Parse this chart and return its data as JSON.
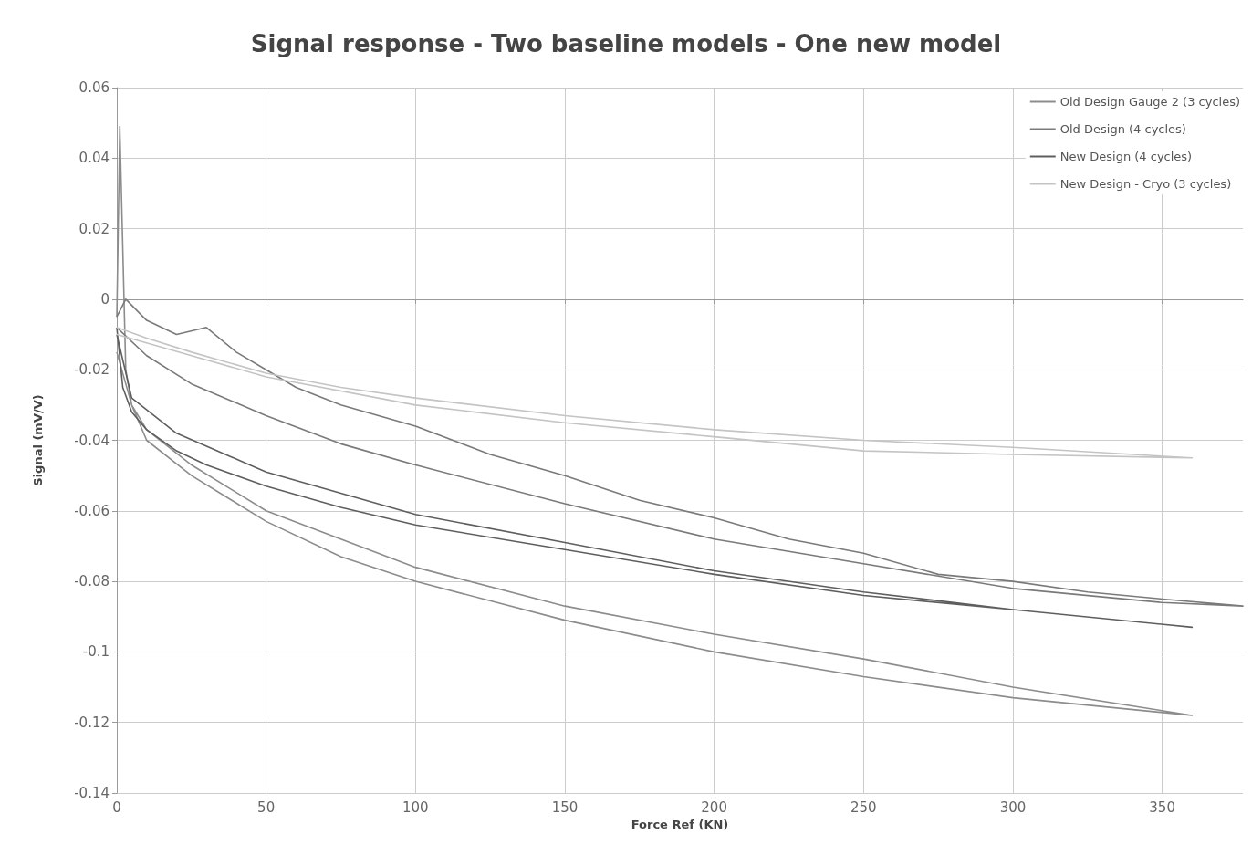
{
  "chart_data": {
    "type": "line",
    "title": "Signal response - Two baseline models - One new model",
    "xlabel": "Force Ref (KN)",
    "ylabel": "Signal (mV/V)",
    "xlim": [
      0,
      377
    ],
    "xticks": [
      0,
      50,
      100,
      150,
      200,
      250,
      300,
      350
    ],
    "ylim": [
      -0.14,
      0.06
    ],
    "yticks": [
      -0.14,
      -0.12,
      -0.1,
      -0.08,
      -0.06,
      -0.04,
      -0.02,
      0,
      0.02,
      0.04,
      0.06
    ],
    "grid": true,
    "legend": "top right",
    "marker": "none",
    "line_style": "solid",
    "series": [
      {
        "name": "Old Design Gauge 2 (3 cycles)",
        "color": "#8c8c8c",
        "x": [
          0,
          1,
          3,
          5,
          10,
          25,
          50,
          75,
          100,
          150,
          200,
          250,
          300,
          360,
          300,
          250,
          200,
          150,
          100,
          50,
          25,
          10,
          5,
          0
        ],
        "values": [
          -0.005,
          0.049,
          -0.02,
          -0.03,
          -0.04,
          -0.05,
          -0.063,
          -0.073,
          -0.08,
          -0.091,
          -0.1,
          -0.107,
          -0.113,
          -0.118,
          -0.11,
          -0.102,
          -0.095,
          -0.087,
          -0.076,
          -0.06,
          -0.047,
          -0.037,
          -0.03,
          -0.015
        ]
      },
      {
        "name": "Old Design (4 cycles)",
        "color": "#7a7a7a",
        "x": [
          0,
          3,
          10,
          20,
          30,
          40,
          50,
          60,
          75,
          100,
          125,
          150,
          175,
          200,
          225,
          250,
          275,
          300,
          325,
          350,
          377,
          350,
          300,
          250,
          200,
          150,
          100,
          75,
          50,
          25,
          10,
          0
        ],
        "values": [
          -0.005,
          0,
          -0.006,
          -0.01,
          -0.008,
          -0.015,
          -0.02,
          -0.025,
          -0.03,
          -0.036,
          -0.044,
          -0.05,
          -0.057,
          -0.062,
          -0.068,
          -0.072,
          -0.078,
          -0.08,
          -0.083,
          -0.085,
          -0.087,
          -0.086,
          -0.082,
          -0.075,
          -0.068,
          -0.058,
          -0.047,
          -0.041,
          -0.033,
          -0.024,
          -0.016,
          -0.008
        ]
      },
      {
        "name": "New Design (4 cycles)",
        "color": "#5e5e5e",
        "x": [
          0,
          2,
          5,
          10,
          20,
          30,
          50,
          75,
          100,
          150,
          200,
          250,
          300,
          360,
          300,
          250,
          200,
          150,
          100,
          50,
          20,
          5,
          0
        ],
        "values": [
          -0.008,
          -0.025,
          -0.032,
          -0.037,
          -0.043,
          -0.047,
          -0.053,
          -0.059,
          -0.064,
          -0.071,
          -0.078,
          -0.084,
          -0.088,
          -0.093,
          -0.088,
          -0.083,
          -0.077,
          -0.069,
          -0.061,
          -0.049,
          -0.038,
          -0.028,
          -0.01
        ]
      },
      {
        "name": "New Design - Cryo (3 cycles)",
        "color": "#c4c4c4",
        "x": [
          0,
          10,
          25,
          50,
          75,
          100,
          150,
          200,
          250,
          300,
          360,
          300,
          250,
          200,
          150,
          100,
          50,
          25,
          0
        ],
        "values": [
          -0.008,
          -0.011,
          -0.015,
          -0.021,
          -0.025,
          -0.028,
          -0.033,
          -0.037,
          -0.04,
          -0.042,
          -0.045,
          -0.044,
          -0.043,
          -0.039,
          -0.035,
          -0.03,
          -0.022,
          -0.016,
          -0.01
        ]
      }
    ]
  }
}
